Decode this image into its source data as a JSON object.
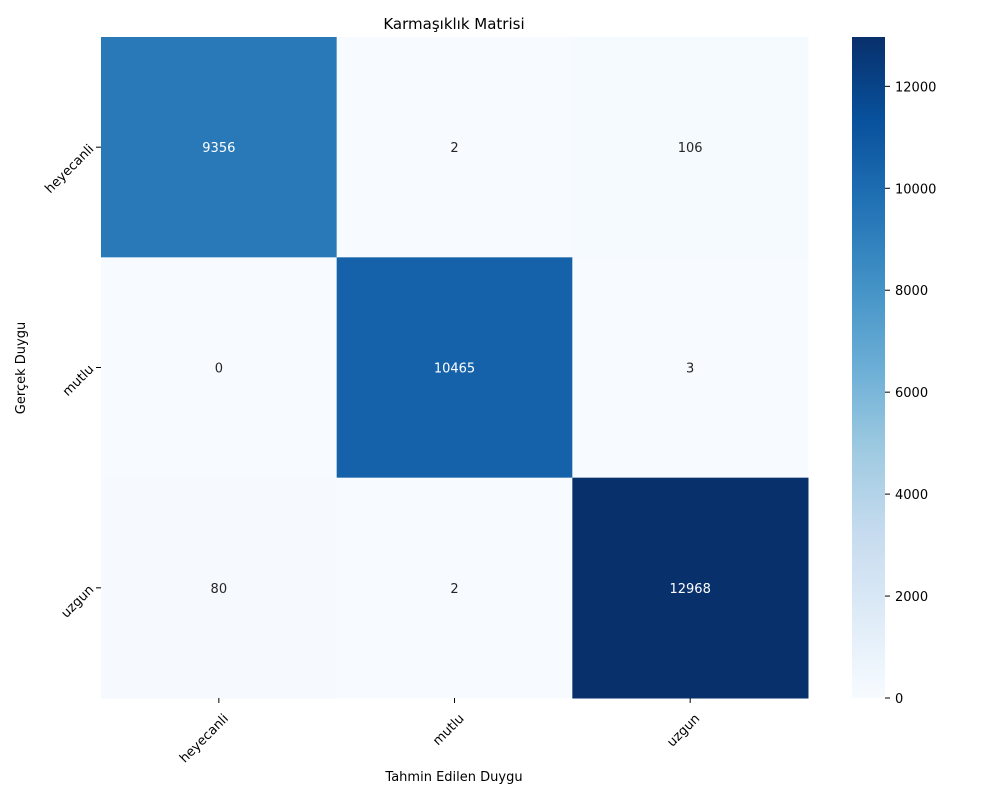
{
  "chart_data": {
    "type": "heatmap",
    "title": "Karmaşıklık Matrisi",
    "xlabel": "Tahmin Edilen Duygu",
    "ylabel": "Gerçek Duygu",
    "x_categories": [
      "heyecanli",
      "mutlu",
      "uzgun"
    ],
    "y_categories": [
      "heyecanli",
      "mutlu",
      "uzgun"
    ],
    "values": [
      [
        9356,
        2,
        106
      ],
      [
        0,
        10465,
        3
      ],
      [
        80,
        2,
        12968
      ]
    ],
    "colormap": "Blues",
    "vmin": 0,
    "vmax": 12968,
    "colorbar_ticks": [
      0,
      2000,
      4000,
      6000,
      8000,
      10000,
      12000
    ],
    "colors": {
      "low": "#f7fbff",
      "high": "#08306b",
      "text_dark": "#262626",
      "text_light": "#ffffff"
    }
  }
}
